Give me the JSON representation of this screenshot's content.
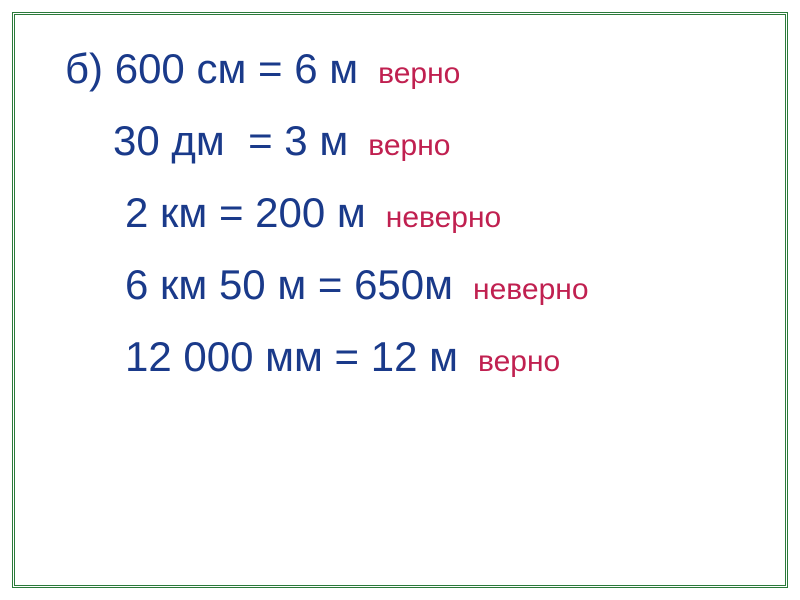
{
  "problem_label": "б)",
  "rows": [
    {
      "equation": "600 см = 6 м",
      "verdict": "верно",
      "verdict_type": "correct",
      "indent_class": "indent-1",
      "prefix": "б) "
    },
    {
      "equation": "30 дм  = 3 м",
      "verdict": "верно",
      "verdict_type": "correct",
      "indent_class": "indent-2",
      "prefix": ""
    },
    {
      "equation": "2 км = 200 м",
      "verdict": "неверно",
      "verdict_type": "incorrect",
      "indent_class": "indent-3",
      "prefix": ""
    },
    {
      "equation": "6 км 50 м = 650м",
      "verdict": "неверно",
      "verdict_type": "incorrect",
      "indent_class": "indent-4",
      "prefix": ""
    },
    {
      "equation": "12 000 мм = 12 м",
      "verdict": "верно",
      "verdict_type": "correct",
      "indent_class": "indent-5",
      "prefix": ""
    }
  ],
  "colors": {
    "frame_border": "#2a7a3a",
    "equation_text": "#1a3a8a",
    "verdict_text": "#c02050",
    "background": "#ffffff"
  },
  "typography": {
    "equation_fontsize": 42,
    "verdict_fontsize": 30,
    "font_family": "Arial, sans-serif"
  }
}
